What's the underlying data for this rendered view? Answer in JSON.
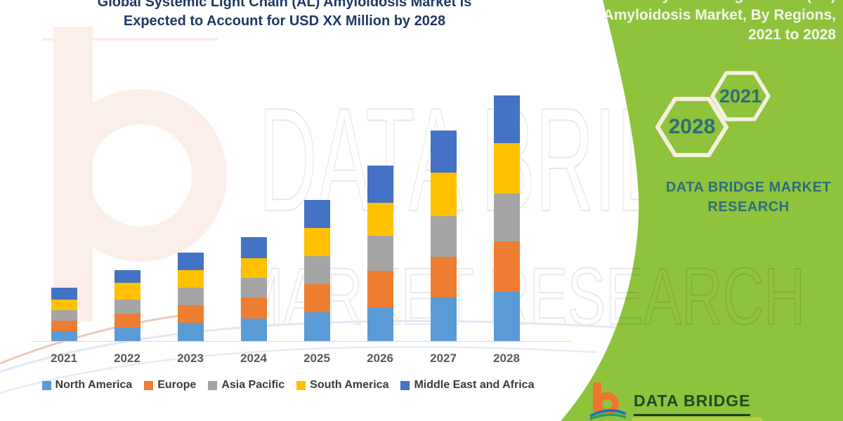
{
  "title": {
    "line1": "Global Systemic Light Chain (AL) Amyloidosis Market is",
    "line2": "Expected to Account for USD XX Million by 2028",
    "color": "#1f3864"
  },
  "green_panel": {
    "bg": "#8fc33c",
    "heading_lines": [
      "Global Systemic Light Chain (AL)",
      "Amyloidosis Market, By Regions,",
      "2021 to 2028"
    ],
    "heading_color": "#f3f7ea",
    "hex_small_label": "2021",
    "hex_large_label": "2028",
    "hex_outline_color": "#f4f0dd",
    "hex_text_color": "#2d6e79",
    "brand_line1": "DATA BRIDGE MARKET",
    "brand_line2": "RESEARCH",
    "brand_color": "#2d6e79"
  },
  "watermark": {
    "line1": "DATA BRIDGE",
    "line2": "MARKET RESEARCH"
  },
  "logo": {
    "name_text": "DATA BRIDGE",
    "text_color": "#1d4b24",
    "b_color": "#f1742c"
  },
  "chart_data": {
    "type": "bar",
    "stacked": true,
    "title": "Global Systemic Light Chain (AL) Amyloidosis Market is Expected to Account for USD XX Million by 2028",
    "categories": [
      "2021",
      "2022",
      "2023",
      "2024",
      "2025",
      "2026",
      "2027",
      "2028"
    ],
    "series": [
      {
        "name": "North America",
        "color": "#5B9BD5",
        "values": [
          14,
          19,
          26,
          32,
          41,
          48,
          62,
          70
        ]
      },
      {
        "name": "Europe",
        "color": "#ED7D31",
        "values": [
          15,
          20,
          25,
          30,
          40,
          52,
          58,
          72
        ]
      },
      {
        "name": "Asia Pacific",
        "color": "#A5A5A5",
        "values": [
          15,
          20,
          25,
          28,
          40,
          50,
          58,
          68
        ]
      },
      {
        "name": "South America",
        "color": "#FFC000",
        "values": [
          15,
          24,
          25,
          28,
          40,
          47,
          62,
          72
        ]
      },
      {
        "name": "Middle East and Africa",
        "color": "#4472C4",
        "values": [
          17,
          18,
          25,
          30,
          40,
          53,
          60,
          68
        ]
      }
    ],
    "stack_order": "bottom-to-top follows series order",
    "values_unit": "relative units (chart shows USD XX Million, numeric axis not labeled)",
    "value_axis_visible": false,
    "grid": false,
    "legend_position": "bottom",
    "xlabel": "",
    "ylabel": "",
    "ylim": [
      0,
      380
    ]
  }
}
